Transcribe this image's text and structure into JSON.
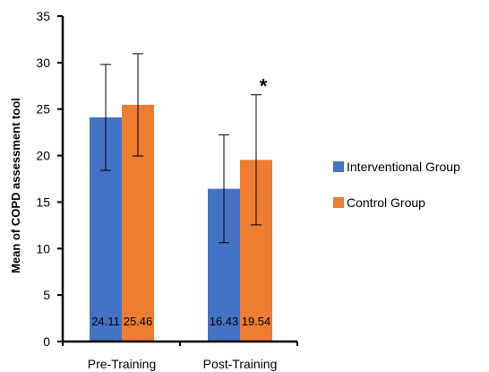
{
  "chart_data": {
    "type": "bar",
    "categories": [
      "Pre-Training",
      "Post-Training"
    ],
    "series": [
      {
        "name": "Interventional Group",
        "values": [
          24.11,
          16.43
        ],
        "error": [
          5.7,
          5.8
        ],
        "color": "#4472C4"
      },
      {
        "name": "Control Group",
        "values": [
          25.46,
          19.54
        ],
        "error": [
          5.5,
          7.0
        ],
        "color": "#ED7D31"
      }
    ],
    "data_labels": [
      "24.11",
      "25.46",
      "16.43",
      "19.54"
    ],
    "ylabel": "Mean of COPD assessment tool",
    "xlabel": "",
    "ylim": [
      0,
      35
    ],
    "yticks": [
      0,
      5,
      10,
      15,
      20,
      25,
      30,
      35
    ],
    "grid": false,
    "legend": "right",
    "annotations": [
      {
        "text": "*",
        "category": "Post-Training",
        "series": "Control Group"
      }
    ]
  }
}
